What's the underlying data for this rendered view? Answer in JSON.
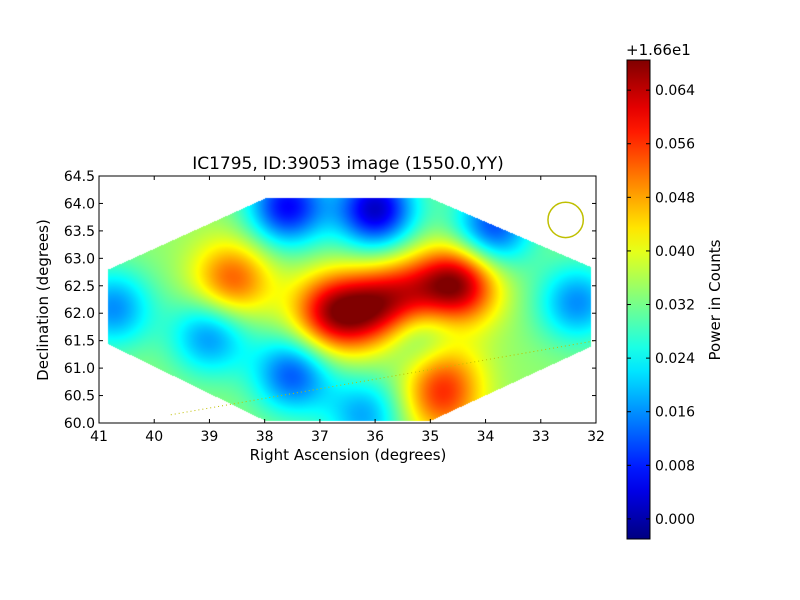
{
  "chart_data": {
    "type": "heatmap",
    "title": "IC1795, ID:39053 image (1550.0,YY)",
    "xlabel": "Right Ascension (degrees)",
    "ylabel": "Declination (degrees)",
    "xlim": [
      41,
      32
    ],
    "ylim": [
      60.0,
      64.5
    ],
    "x_ticks": [
      "41",
      "40",
      "39",
      "38",
      "37",
      "36",
      "35",
      "34",
      "33",
      "32"
    ],
    "y_ticks": [
      "60.0",
      "60.5",
      "61.0",
      "61.5",
      "62.0",
      "62.5",
      "63.0",
      "63.5",
      "64.0",
      "64.5"
    ],
    "colormap": "jet",
    "colorbar": {
      "label": "Power in Counts",
      "offset_text": "+1.66e1",
      "range": [
        -0.003,
        0.0685
      ],
      "ticks": [
        "0.000",
        "0.008",
        "0.016",
        "0.024",
        "0.032",
        "0.040",
        "0.048",
        "0.056",
        "0.064"
      ]
    },
    "footprint_hexagon_ra_dec": [
      [
        38.0,
        64.1
      ],
      [
        35.0,
        64.1
      ],
      [
        32.1,
        62.85
      ],
      [
        32.1,
        61.4
      ],
      [
        35.0,
        60.05
      ],
      [
        38.0,
        60.05
      ],
      [
        40.85,
        61.45
      ],
      [
        40.85,
        62.8
      ]
    ],
    "beam_circle": {
      "ra": 32.55,
      "dec": 63.7,
      "radius_deg": 0.32,
      "color": "#bfbf00"
    },
    "dotted_line_ra_dec": [
      [
        39.7,
        60.15
      ],
      [
        32.0,
        61.5
      ]
    ],
    "intensity_features": [
      {
        "ra": 34.5,
        "dec": 62.55,
        "value": 0.066
      },
      {
        "ra": 36.8,
        "dec": 62.0,
        "value": 0.062
      },
      {
        "ra": 36.0,
        "dec": 62.1,
        "value": 0.058
      },
      {
        "ra": 38.6,
        "dec": 62.6,
        "value": 0.054
      },
      {
        "ra": 35.3,
        "dec": 62.3,
        "value": 0.054
      },
      {
        "ra": 34.8,
        "dec": 60.4,
        "value": 0.05
      },
      {
        "ra": 34.8,
        "dec": 61.0,
        "value": 0.046
      },
      {
        "ra": 36.0,
        "dec": 63.9,
        "value": 0.002
      },
      {
        "ra": 37.6,
        "dec": 63.95,
        "value": 0.006
      },
      {
        "ra": 33.9,
        "dec": 63.55,
        "value": 0.01
      },
      {
        "ra": 37.5,
        "dec": 60.9,
        "value": 0.012
      },
      {
        "ra": 39.0,
        "dec": 61.6,
        "value": 0.016
      },
      {
        "ra": 35.2,
        "dec": 61.7,
        "value": 0.018
      },
      {
        "ra": 40.75,
        "dec": 62.1,
        "value": 0.016
      },
      {
        "ra": 32.35,
        "dec": 62.2,
        "value": 0.016
      },
      {
        "ra": 36.2,
        "dec": 60.15,
        "value": 0.018
      }
    ]
  }
}
